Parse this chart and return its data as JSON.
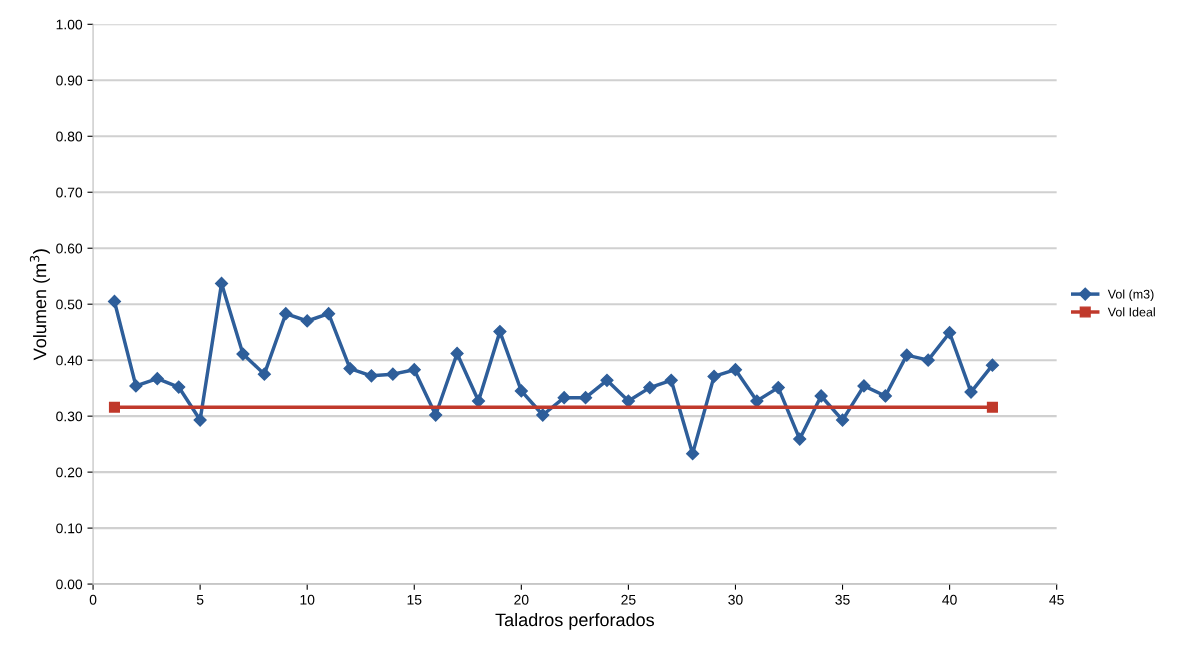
{
  "chart_data": {
    "type": "line",
    "xlabel": "Taladros perforados",
    "ylabel": "Volumen (m$^{3}$)",
    "xlim": [
      0,
      45
    ],
    "xticks": [
      0,
      5,
      10,
      15,
      20,
      25,
      30,
      35,
      40,
      45
    ],
    "ylim": [
      0,
      1.0
    ],
    "yticks": [
      {
        "value": 0,
        "label": "0.00"
      },
      {
        "value": 0.1,
        "label": "0.10"
      },
      {
        "value": 0.2,
        "label": "0.20"
      },
      {
        "value": 0.3,
        "label": "0.30"
      },
      {
        "value": 0.4,
        "label": "0.40"
      },
      {
        "value": 0.5,
        "label": "0.50"
      },
      {
        "value": 0.6,
        "label": "0.60"
      },
      {
        "value": 0.7,
        "label": "0.70"
      },
      {
        "value": 0.8,
        "label": "0.80"
      },
      {
        "value": 0.9,
        "label": "0.90"
      },
      {
        "value": 1.0,
        "label": "1.00"
      }
    ],
    "grid": "y",
    "legend": "right",
    "line_style": "solid",
    "series": [
      {
        "name": "Vol (m3)",
        "color": "#2e5e9a",
        "marker": "diamond",
        "x": [
          1,
          2,
          3,
          4,
          5,
          6,
          7,
          8,
          9,
          10,
          11,
          12,
          13,
          14,
          15,
          16,
          17,
          18,
          19,
          20,
          21,
          22,
          23,
          24,
          25,
          26,
          27,
          28,
          29,
          30,
          31,
          32,
          33,
          34,
          35,
          36,
          37,
          38,
          39,
          40,
          41,
          42
        ],
        "values": [
          0.505,
          0.354,
          0.367,
          0.352,
          0.293,
          0.537,
          0.411,
          0.375,
          0.483,
          0.47,
          0.483,
          0.385,
          0.372,
          0.375,
          0.383,
          0.302,
          0.412,
          0.327,
          0.451,
          0.345,
          0.302,
          0.333,
          0.333,
          0.364,
          0.327,
          0.351,
          0.364,
          0.233,
          0.371,
          0.383,
          0.327,
          0.351,
          0.259,
          0.336,
          0.293,
          0.354,
          0.336,
          0.409,
          0.4,
          0.449,
          0.343,
          0.391
        ]
      },
      {
        "name": "Vol Ideal",
        "color": "#c0392b",
        "marker": "square",
        "x": [
          1,
          42
        ],
        "values": [
          0.316,
          0.316
        ]
      }
    ]
  }
}
